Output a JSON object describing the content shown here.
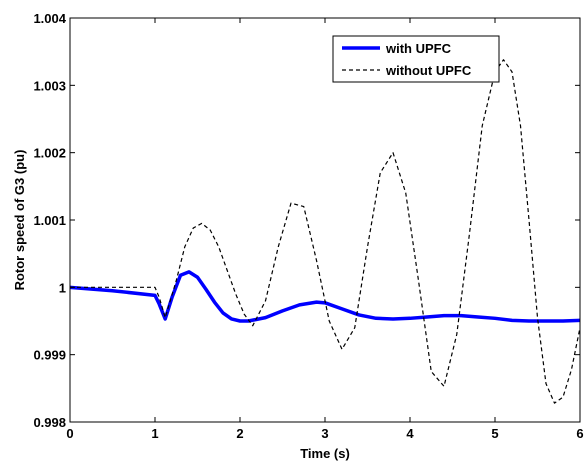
{
  "chart_data": {
    "type": "line",
    "title": "",
    "xlabel": "Time (s)",
    "ylabel": "Rotor speed of G3 (pu)",
    "xlim": [
      0,
      6
    ],
    "ylim": [
      0.998,
      1.004
    ],
    "xticks": [
      0,
      1,
      2,
      3,
      4,
      5,
      6
    ],
    "xtick_labels": [
      "0",
      "1",
      "2",
      "3",
      "4",
      "5",
      "6"
    ],
    "yticks": [
      0.998,
      0.999,
      1.0,
      1.001,
      1.002,
      1.003,
      1.004
    ],
    "ytick_labels": [
      "0.998",
      "0.999",
      "1",
      "1.001",
      "1.002",
      "1.003",
      "1.004"
    ],
    "grid": false,
    "legend_position": "top-right",
    "series": [
      {
        "name": "with UPFC",
        "color": "#0000ff",
        "style": "solid",
        "x": [
          0,
          0.5,
          1.0,
          1.05,
          1.12,
          1.2,
          1.3,
          1.4,
          1.5,
          1.6,
          1.7,
          1.8,
          1.9,
          2.0,
          2.1,
          2.3,
          2.5,
          2.7,
          2.9,
          3.0,
          3.2,
          3.4,
          3.6,
          3.8,
          4.0,
          4.2,
          4.4,
          4.6,
          4.8,
          5.0,
          5.2,
          5.4,
          5.6,
          5.8,
          6.0
        ],
        "y": [
          1.0,
          0.99995,
          0.99988,
          0.99975,
          0.99953,
          0.99985,
          1.00018,
          1.00023,
          1.00015,
          0.99997,
          0.99978,
          0.99962,
          0.99953,
          0.9995,
          0.9995,
          0.99955,
          0.99965,
          0.99974,
          0.99978,
          0.99977,
          0.99968,
          0.99959,
          0.99954,
          0.99953,
          0.99954,
          0.99956,
          0.99958,
          0.99958,
          0.99956,
          0.99954,
          0.99951,
          0.9995,
          0.9995,
          0.9995,
          0.99951
        ]
      },
      {
        "name": "without UPFC",
        "color": "#000000",
        "style": "dashed",
        "x": [
          0,
          0.5,
          1.0,
          1.05,
          1.12,
          1.25,
          1.35,
          1.45,
          1.55,
          1.65,
          1.75,
          1.85,
          1.95,
          2.05,
          2.15,
          2.3,
          2.45,
          2.6,
          2.75,
          2.9,
          3.05,
          3.2,
          3.35,
          3.5,
          3.65,
          3.8,
          3.95,
          4.1,
          4.25,
          4.4,
          4.55,
          4.7,
          4.85,
          5.0,
          5.1,
          5.2,
          5.3,
          5.4,
          5.5,
          5.6,
          5.7,
          5.8,
          5.9,
          6.0
        ],
        "y": [
          1.0,
          1.0,
          1.0,
          0.99985,
          0.99955,
          1.0001,
          1.0006,
          1.00088,
          1.00095,
          1.00085,
          1.0006,
          1.00025,
          0.9999,
          0.9996,
          0.99943,
          0.9998,
          1.0006,
          1.00125,
          1.0012,
          1.0004,
          0.9995,
          0.99908,
          0.9994,
          1.0006,
          1.0017,
          1.002,
          1.0014,
          1.0001,
          0.99875,
          0.99853,
          0.9993,
          1.0008,
          1.0024,
          1.0032,
          1.00338,
          1.0032,
          1.0024,
          1.001,
          0.99955,
          0.99857,
          0.99828,
          0.99837,
          0.99878,
          0.9994
        ]
      }
    ]
  }
}
